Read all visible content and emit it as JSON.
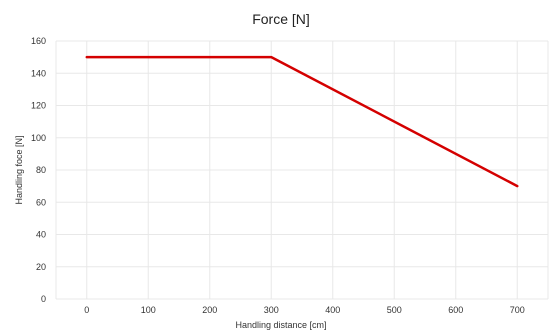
{
  "chart_data": {
    "type": "line",
    "title": "Force [N]",
    "xlabel": "Handling distance [cm]",
    "ylabel": "Handling foce [N]",
    "xlim": [
      -50,
      750
    ],
    "ylim": [
      0,
      160
    ],
    "x_ticks": [
      0,
      100,
      200,
      300,
      400,
      500,
      600,
      700
    ],
    "y_ticks": [
      0,
      20,
      40,
      60,
      80,
      100,
      120,
      140,
      160
    ],
    "grid": true,
    "legend": "none",
    "series": [
      {
        "color": "#d40000",
        "x": [
          0,
          300,
          700
        ],
        "y": [
          150,
          150,
          70
        ]
      }
    ]
  }
}
